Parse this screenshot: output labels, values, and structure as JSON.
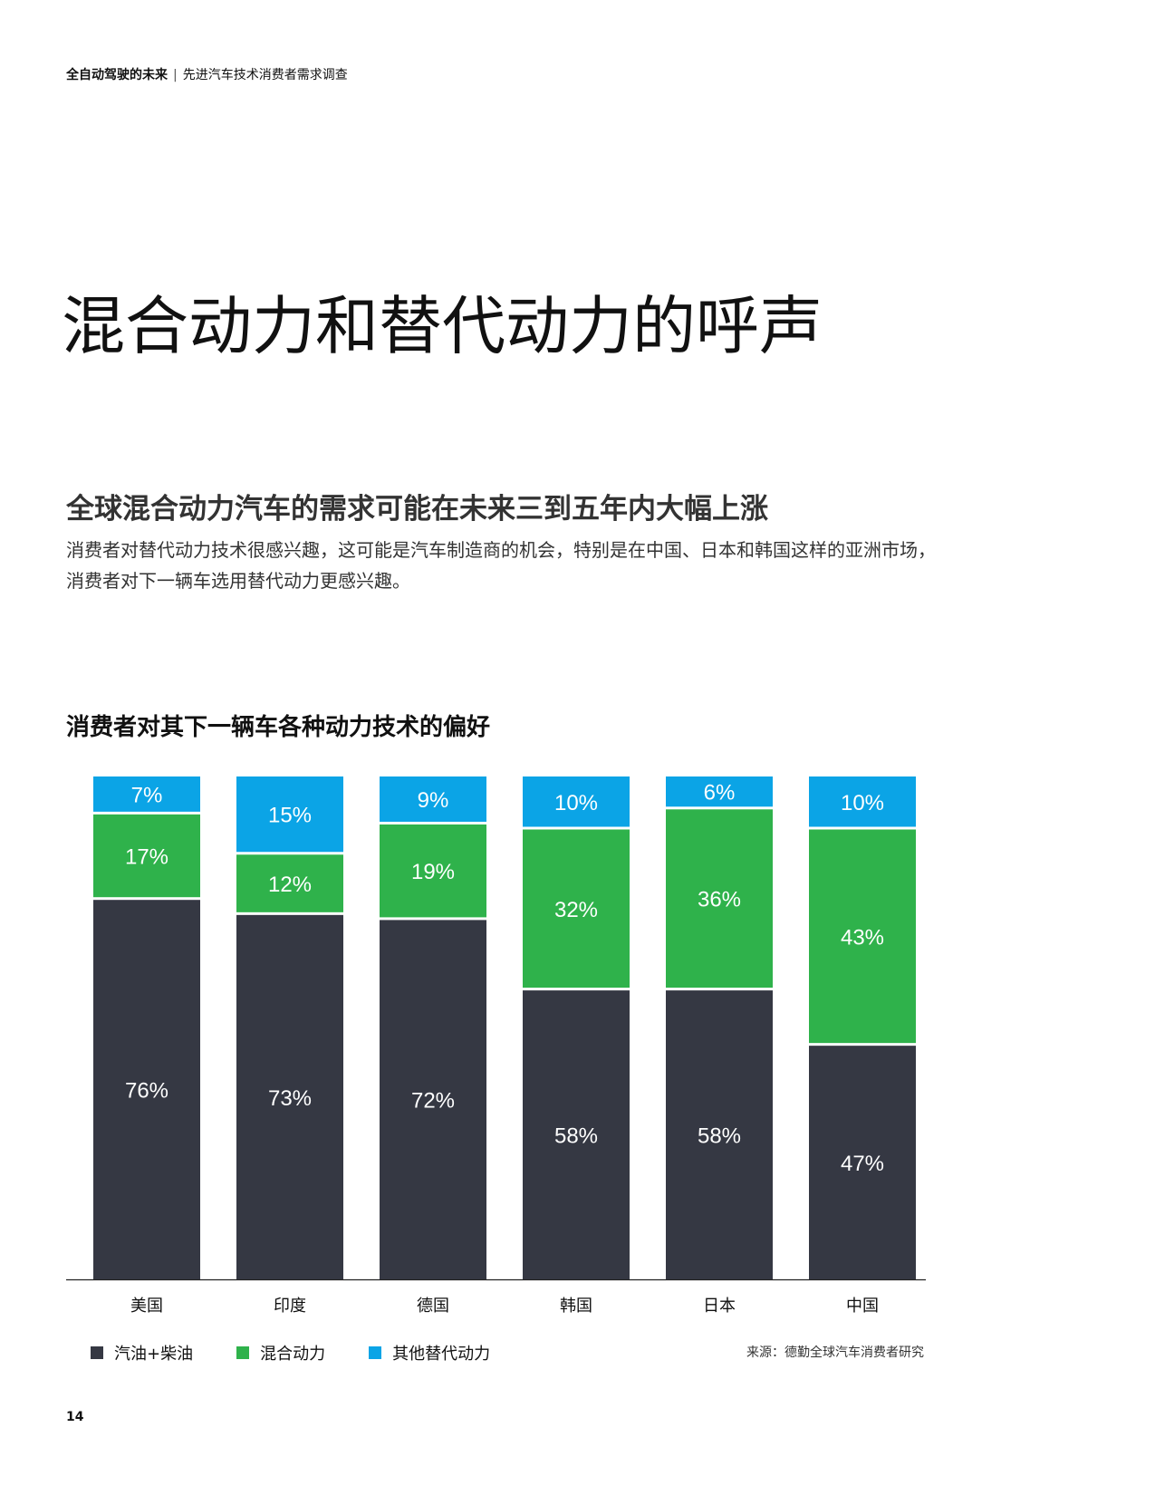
{
  "header": {
    "report_name": "全自动驾驶的未来",
    "separator": "|",
    "report_subtitle": "先进汽车技术消费者需求调查"
  },
  "page_title": "混合动力和替代动力的呼声",
  "subheading": "全球混合动力汽车的需求可能在未来三到五年内大幅上涨",
  "intro_text": "消费者对替代动力技术很感兴趣，这可能是汽车制造商的机会，特别是在中国、日本和韩国这样的亚洲市场，消费者对下一辆车选用替代动力更感兴趣。",
  "chart_title": "消费者对其下一辆车各种动力技术的偏好",
  "chart_data": {
    "type": "bar",
    "stacked": true,
    "categories": [
      "美国",
      "印度",
      "德国",
      "韩国",
      "日本",
      "中国"
    ],
    "series": [
      {
        "name": "汽油+柴油",
        "color": "#353843",
        "values": [
          76,
          73,
          72,
          58,
          58,
          47
        ],
        "labels": [
          "76%",
          "73%",
          "72%",
          "58%",
          "58%",
          "47%"
        ]
      },
      {
        "name": "混合动力",
        "color": "#2fb24b",
        "values": [
          17,
          12,
          19,
          32,
          36,
          43
        ],
        "labels": [
          "17%",
          "12%",
          "19%",
          "32%",
          "36%",
          "43%"
        ]
      },
      {
        "name": "其他替代动力",
        "color": "#0ba4e6",
        "values": [
          7,
          15,
          9,
          10,
          6,
          10
        ],
        "labels": [
          "7%",
          "15%",
          "9%",
          "10%",
          "6%",
          "10%"
        ]
      }
    ],
    "ylim": [
      0,
      100
    ],
    "grid": false,
    "legend_position": "bottom-left"
  },
  "legend_colors": {
    "gas_diesel": "#353843",
    "hybrid": "#2fb24b",
    "alternative": "#0ba4e6"
  },
  "source_text": "来源：德勤全球汽车消费者研究",
  "page_number": "14"
}
